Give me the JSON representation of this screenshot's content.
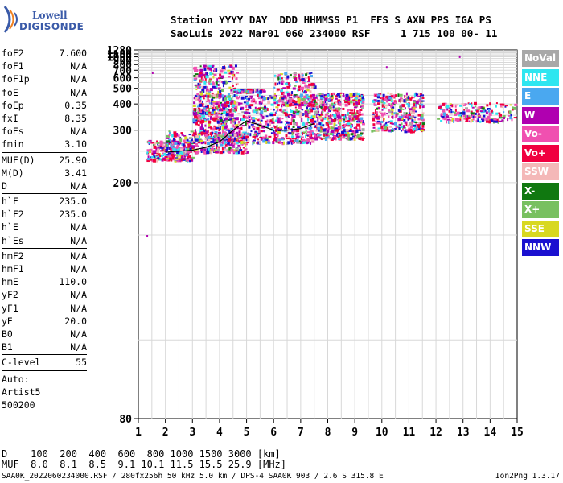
{
  "logo": {
    "line1": "Lowell",
    "line2": "DIGISONDE"
  },
  "header": {
    "line1": "Station YYYY DAY  DDD HHMMSS P1  FFS S AXN PPS IGA PS",
    "line2": "SaoLuis 2022 Mar01 060 234000 RSF     1 715 100 00- 11"
  },
  "params": {
    "group1": [
      {
        "k": "foF2",
        "v": "7.600"
      },
      {
        "k": "foF1",
        "v": "N/A"
      },
      {
        "k": "foF1p",
        "v": "N/A"
      },
      {
        "k": "foE",
        "v": "N/A"
      },
      {
        "k": "foEp",
        "v": "0.35"
      },
      {
        "k": "fxI",
        "v": "8.35"
      },
      {
        "k": "foEs",
        "v": "N/A"
      },
      {
        "k": "fmin",
        "v": "3.10"
      }
    ],
    "group2": [
      {
        "k": "MUF(D)",
        "v": "25.90"
      },
      {
        "k": "M(D)",
        "v": "3.41"
      },
      {
        "k": "D",
        "v": "N/A"
      }
    ],
    "group3": [
      {
        "k": "h`F",
        "v": "235.0"
      },
      {
        "k": "h`F2",
        "v": "235.0"
      },
      {
        "k": "h`E",
        "v": "N/A"
      },
      {
        "k": "h`Es",
        "v": "N/A"
      }
    ],
    "group4": [
      {
        "k": "hmF2",
        "v": "N/A"
      },
      {
        "k": "hmF1",
        "v": "N/A"
      },
      {
        "k": "hmE",
        "v": "110.0"
      },
      {
        "k": "yF2",
        "v": "N/A"
      },
      {
        "k": "yF1",
        "v": "N/A"
      },
      {
        "k": "yE",
        "v": "20.0"
      },
      {
        "k": "B0",
        "v": "N/A"
      },
      {
        "k": "B1",
        "v": "N/A"
      }
    ],
    "group5": [
      {
        "k": "C-level",
        "v": "55"
      }
    ],
    "auto": [
      "Auto:",
      "Artist5",
      "500200"
    ]
  },
  "legend": [
    {
      "label": "NoVal",
      "color": "#a8a8a8"
    },
    {
      "label": "NNE",
      "color": "#2ee6f0"
    },
    {
      "label": "E",
      "color": "#4aa8f0"
    },
    {
      "label": "W",
      "color": "#b000b0"
    },
    {
      "label": "Vo-",
      "color": "#f050b0"
    },
    {
      "label": "Vo+",
      "color": "#f00040"
    },
    {
      "label": "SSW",
      "color": "#f4b8b8"
    },
    {
      "label": "X-",
      "color": "#107810"
    },
    {
      "label": "X+",
      "color": "#78c060"
    },
    {
      "label": "SSE",
      "color": "#d8d820"
    },
    {
      "label": "NNW",
      "color": "#1a10d0"
    }
  ],
  "footer": {
    "line1": "D    100  200  400  600  800 1000 1500 3000 [km]",
    "line2": "MUF  8.0  8.1  8.5  9.1 10.1 11.5 15.5 25.9 [MHz]",
    "line3": "SAA0K_2022060234000.RSF / 280fx256h 50 kHz 5.0 km / DPS-4 SAA0K 903 / 2.6 S 315.8 E",
    "version": "Ion2Png 1.3.17"
  },
  "chart_data": {
    "type": "scatter",
    "title": "",
    "xlabel": "",
    "ylabel": "",
    "xlim": [
      1,
      15
    ],
    "ylim": [
      80,
      1280
    ],
    "x_ticks": [
      1,
      2,
      3,
      4,
      5,
      6,
      7,
      8,
      9,
      10,
      11,
      12,
      13,
      14,
      15
    ],
    "y_ticks": [
      80,
      200,
      300,
      400,
      500,
      600,
      700,
      800,
      900,
      1000,
      1100,
      1280
    ],
    "grid": true,
    "trace": {
      "name": "",
      "x": [
        2.0,
        2.5,
        3.0,
        3.5,
        4.0,
        4.5,
        5.0,
        5.5,
        6.0,
        6.5,
        7.0,
        7.5
      ],
      "y": [
        248,
        250,
        252,
        258,
        270,
        300,
        330,
        315,
        300,
        300,
        305,
        320
      ]
    },
    "clusters": [
      {
        "x0": 1.3,
        "x1": 3.0,
        "y0": 235,
        "y1": 275,
        "n": 260
      },
      {
        "x0": 2.0,
        "x1": 5.0,
        "y0": 250,
        "y1": 300,
        "n": 260
      },
      {
        "x0": 3.0,
        "x1": 7.5,
        "y0": 270,
        "y1": 460,
        "n": 900
      },
      {
        "x0": 3.0,
        "x1": 4.6,
        "y0": 330,
        "y1": 800,
        "n": 260
      },
      {
        "x0": 4.5,
        "x1": 5.6,
        "y0": 480,
        "y1": 500,
        "n": 90
      },
      {
        "x0": 6.0,
        "x1": 7.5,
        "y0": 400,
        "y1": 680,
        "n": 170
      },
      {
        "x0": 7.5,
        "x1": 9.3,
        "y0": 280,
        "y1": 470,
        "n": 520
      },
      {
        "x0": 9.6,
        "x1": 11.5,
        "y0": 300,
        "y1": 470,
        "n": 360
      },
      {
        "x0": 12.0,
        "x1": 14.9,
        "y0": 330,
        "y1": 410,
        "n": 190
      }
    ]
  }
}
